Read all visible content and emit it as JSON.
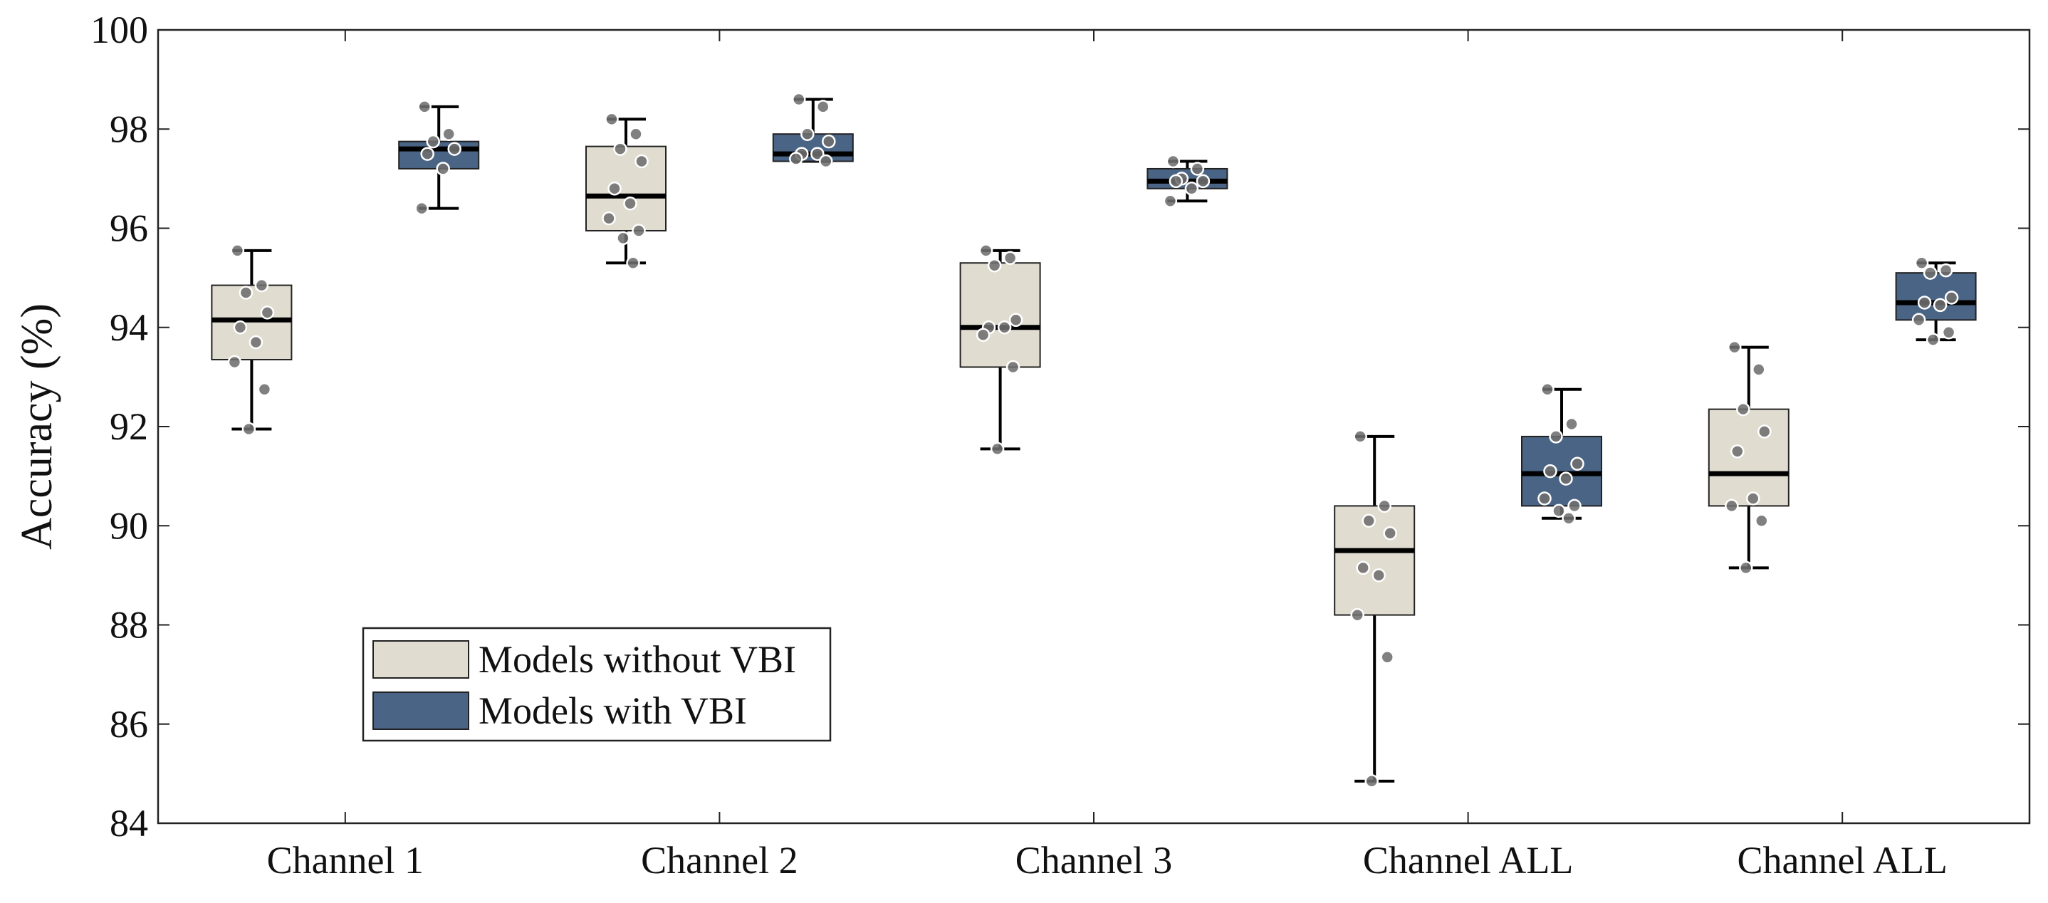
{
  "chart_data": {
    "type": "box",
    "ylabel": "Accuracy (%)",
    "xlabel": "",
    "ylim": [
      84,
      100
    ],
    "yticks": [
      84,
      86,
      88,
      90,
      92,
      94,
      96,
      98,
      100
    ],
    "grid": false,
    "categories": [
      "Channel 1",
      "Channel 2",
      "Channel 3",
      "Channel ALL",
      "Channel ALL"
    ],
    "legend": {
      "position": "bottom-left",
      "entries": [
        "Models without VBI",
        "Models with VBI"
      ]
    },
    "colors": {
      "without": "#e0ddd0",
      "with": "#4a6485",
      "point": "#6e6e6e",
      "median": "#000000"
    },
    "series": [
      {
        "name": "Models without VBI",
        "boxes": [
          {
            "min": 91.95,
            "q1": 93.35,
            "median": 94.15,
            "q3": 94.85,
            "max": 95.55
          },
          {
            "min": 95.3,
            "q1": 95.95,
            "median": 96.65,
            "q3": 97.65,
            "max": 98.2
          },
          {
            "min": 91.55,
            "q1": 93.2,
            "median": 94.0,
            "q3": 95.3,
            "max": 95.55
          },
          {
            "min": 84.85,
            "q1": 88.2,
            "median": 89.5,
            "q3": 90.4,
            "max": 91.8
          },
          {
            "min": 89.15,
            "q1": 90.4,
            "median": 91.05,
            "q3": 92.35,
            "max": 93.6
          }
        ],
        "points": [
          [
            95.55,
            94.85,
            94.7,
            94.3,
            94.0,
            93.7,
            93.3,
            92.75,
            91.95
          ],
          [
            98.2,
            97.9,
            97.6,
            97.35,
            96.8,
            96.5,
            96.2,
            95.95,
            95.8,
            95.3
          ],
          [
            95.55,
            95.4,
            95.25,
            94.15,
            94.0,
            94.0,
            93.85,
            93.2,
            91.55
          ],
          [
            91.8,
            90.4,
            90.1,
            89.85,
            89.15,
            89.0,
            88.2,
            87.35,
            84.85
          ],
          [
            93.6,
            93.15,
            92.35,
            91.9,
            91.5,
            90.55,
            90.4,
            90.1,
            89.15
          ]
        ]
      },
      {
        "name": "Models with VBI",
        "boxes": [
          {
            "min": 96.4,
            "q1": 97.2,
            "median": 97.6,
            "q3": 97.75,
            "max": 98.45
          },
          {
            "min": 97.35,
            "q1": 97.35,
            "median": 97.5,
            "q3": 97.9,
            "max": 98.6
          },
          {
            "min": 96.55,
            "q1": 96.8,
            "median": 96.95,
            "q3": 97.2,
            "max": 97.35
          },
          {
            "min": 90.15,
            "q1": 90.4,
            "median": 91.05,
            "q3": 91.8,
            "max": 92.75
          },
          {
            "min": 93.75,
            "q1": 94.15,
            "median": 94.5,
            "q3": 95.1,
            "max": 95.3
          }
        ],
        "points": [
          [
            98.45,
            97.9,
            97.75,
            97.6,
            97.5,
            97.2,
            96.4
          ],
          [
            98.6,
            98.45,
            97.9,
            97.75,
            97.5,
            97.5,
            97.4,
            97.35
          ],
          [
            97.35,
            97.2,
            97.0,
            96.95,
            96.95,
            96.8,
            96.55
          ],
          [
            92.75,
            92.05,
            91.8,
            91.25,
            91.1,
            90.95,
            90.55,
            90.4,
            90.3,
            90.15
          ],
          [
            95.3,
            95.15,
            95.1,
            94.6,
            94.5,
            94.45,
            94.15,
            93.9,
            93.75
          ]
        ]
      }
    ]
  }
}
